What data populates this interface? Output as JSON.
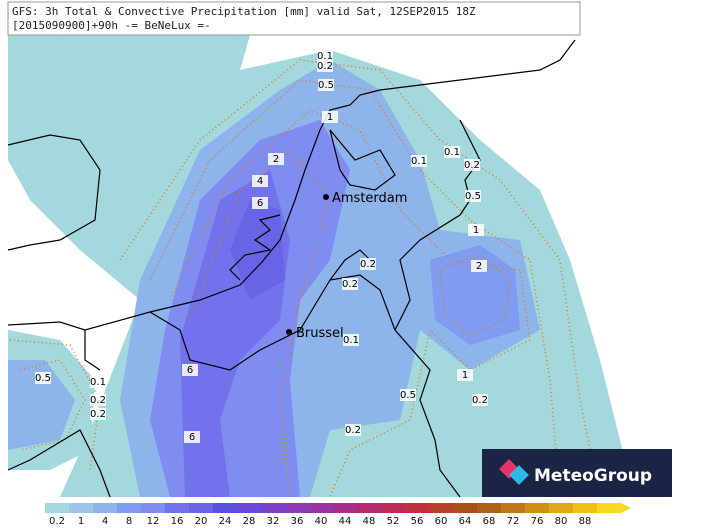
{
  "header": {
    "line1": "GFS: 3h Total & Convective Precipitation [mm] valid Sat, 12SEP2015 18Z",
    "line2": "[2015090900]+90h -= BeNeLux =-"
  },
  "cities": [
    "Amsterdam",
    "Brussel"
  ],
  "contour_labels": [
    "0.1",
    "0.2",
    "0.5",
    "1",
    "2",
    "4",
    "6",
    "0.1",
    "0.1",
    "0.2",
    "0.5",
    "1",
    "2",
    "0.2",
    "0.2",
    "0.1",
    "6",
    "1",
    "0.5",
    "0.1",
    "0.2",
    "0.2",
    "0.5",
    "0.2",
    "6",
    "0.2"
  ],
  "colorbar_labels": [
    "0.2",
    "1",
    "4",
    "8",
    "12",
    "16",
    "20",
    "24",
    "28",
    "32",
    "36",
    "40",
    "44",
    "48",
    "52",
    "56",
    "60",
    "64",
    "68",
    "72",
    "76",
    "80",
    "88"
  ],
  "logo": "MeteoGroup"
}
